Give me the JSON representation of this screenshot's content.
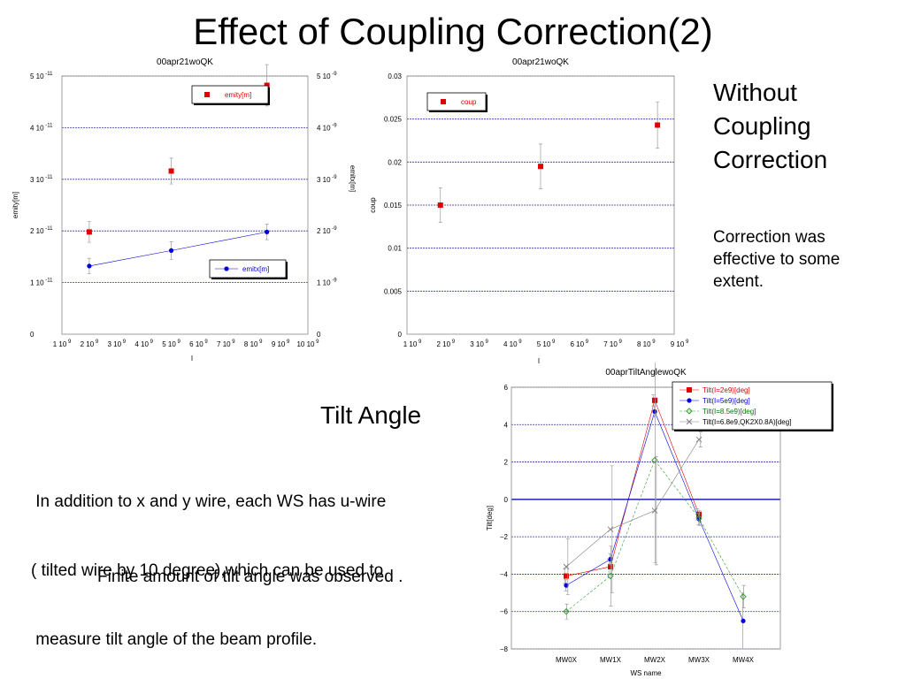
{
  "slide": {
    "title": "Effect of Coupling Correction(2)",
    "side_heading": [
      "Without",
      "Coupling",
      "Correction"
    ],
    "side_note": [
      "Correction was",
      "effective to some",
      "extent."
    ],
    "tilt_heading": "Tilt Angle",
    "paragraph": [
      " In addition to x and y wire, each WS has u-wire",
      "( tilted wire by 10 degree),which can be used to",
      " measure tilt angle of the beam profile."
    ],
    "finite_note": "Finite amount of tilt angle was observed ."
  },
  "chart_data": [
    {
      "type": "scatter",
      "title": "00apr21woQK",
      "xlabel": "I",
      "ylabel": "emity[m]",
      "ylabel_right": "emitx[m]",
      "x_ticks": [
        [
          "1 10",
          "9"
        ],
        [
          "2 10",
          "9"
        ],
        [
          "3 10",
          "9"
        ],
        [
          "4 10",
          "9"
        ],
        [
          "5 10",
          "9"
        ],
        [
          "6 10",
          "9"
        ],
        [
          "7 10",
          "9"
        ],
        [
          "8 10",
          "9"
        ],
        [
          "9 10",
          "9"
        ],
        [
          "10 10",
          "9"
        ]
      ],
      "y_left_ticks": [
        [
          "0",
          ""
        ],
        [
          "1 10",
          "-11"
        ],
        [
          "2 10",
          "-11"
        ],
        [
          "3 10",
          "-11"
        ],
        [
          "4 10",
          "-11"
        ],
        [
          "5 10",
          "-11"
        ]
      ],
      "y_right_ticks": [
        [
          "0",
          ""
        ],
        [
          "1 10",
          "-9"
        ],
        [
          "2 10",
          "-9"
        ],
        [
          "3 10",
          "-9"
        ],
        [
          "4 10",
          "-9"
        ],
        [
          "5 10",
          "-9"
        ]
      ],
      "xlim": [
        1000000000.0,
        10000000000.0
      ],
      "ylim_left": [
        0,
        5e-11
      ],
      "ylim_right": [
        0,
        5e-09
      ],
      "grid": "horizontal",
      "series": [
        {
          "name": "emity[m]",
          "axis": "left",
          "color": "#e00000",
          "marker": "square",
          "line": false,
          "points": [
            [
              2000000000.0,
              1.98e-11,
              2e-12
            ],
            [
              5000000000.0,
              3.16e-11,
              2.5e-12
            ],
            [
              8500000000.0,
              4.82e-11,
              4e-12
            ]
          ]
        },
        {
          "name": "emitx[m]",
          "axis": "right",
          "color": "#0000dd",
          "marker": "circle",
          "line": true,
          "points": [
            [
              2000000000.0,
              1.32e-09,
              1.5e-10
            ],
            [
              5000000000.0,
              1.62e-09,
              1.7e-10
            ],
            [
              8500000000.0,
              1.98e-09,
              1.5e-10
            ]
          ]
        }
      ]
    },
    {
      "type": "scatter",
      "title": "00apr21woQK",
      "xlabel": "I",
      "ylabel": "coup",
      "x_ticks": [
        [
          "1 10",
          "9"
        ],
        [
          "2 10",
          "9"
        ],
        [
          "3 10",
          "9"
        ],
        [
          "4 10",
          "9"
        ],
        [
          "5 10",
          "9"
        ],
        [
          "6 10",
          "9"
        ],
        [
          "7 10",
          "9"
        ],
        [
          "8 10",
          "9"
        ],
        [
          "9 10",
          "9"
        ]
      ],
      "y_ticks": [
        "0",
        "0.005",
        "0.01",
        "0.015",
        "0.02",
        "0.025",
        "0.03"
      ],
      "xlim": [
        1000000000.0,
        9000000000.0
      ],
      "ylim": [
        0,
        0.03
      ],
      "grid": "horizontal",
      "series": [
        {
          "name": "coup",
          "color": "#e00000",
          "marker": "square",
          "line": false,
          "points": [
            [
              2000000000.0,
              0.015,
              0.002
            ],
            [
              5000000000.0,
              0.0195,
              0.0026
            ],
            [
              8500000000.0,
              0.0243,
              0.0027
            ]
          ]
        }
      ]
    },
    {
      "type": "line",
      "title": "00aprTiltAnglewoQK",
      "xlabel": "WS name",
      "ylabel": "Tilt[deg]",
      "categories": [
        "MW0X",
        "MW1X",
        "MW2X",
        "MW3X",
        "MW4X"
      ],
      "ylim": [
        -8,
        6
      ],
      "y_ticks": [
        "6",
        "4",
        "2",
        "0",
        "−2",
        "−4",
        "−6",
        "−8"
      ],
      "grid": "horizontal",
      "series": [
        {
          "name": "Tilt(I=2e9)[deg]",
          "color": "#e00000",
          "label_color": "#e00000",
          "marker": "square",
          "dash": "",
          "values": [
            -4.1,
            -3.6,
            5.3,
            -0.8,
            null
          ],
          "errors": [
            0.4,
            0.4,
            0.3,
            0.3,
            null
          ]
        },
        {
          "name": "Tilt(I=5e9)[deg]",
          "color": "#0000dd",
          "label_color": "#0000dd",
          "marker": "circle",
          "dash": "",
          "values": [
            -4.6,
            -3.2,
            4.7,
            -1.05,
            -6.5
          ],
          "errors": [
            0.3,
            0.3,
            0.3,
            0.3,
            1.5
          ]
        },
        {
          "name": "Tilt(I=8.5e9)[deg]",
          "color": "#339933",
          "label_color": "#007700",
          "marker": "diamond",
          "dash": "3,2",
          "values": [
            -6.0,
            -4.1,
            2.1,
            -1.0,
            -5.2
          ],
          "errors": [
            0.4,
            1.6,
            5.5,
            0.4,
            0.6
          ]
        },
        {
          "name": "Tilt(I=6.8e9,QK2X0.8A)[deg]",
          "color": "#808080",
          "label_color": "#000000",
          "marker": "cross",
          "dash": "",
          "values": [
            -3.6,
            -1.6,
            -0.6,
            3.2,
            null
          ],
          "errors": [
            1.5,
            3.4,
            2.9,
            0.4,
            null
          ]
        }
      ]
    }
  ]
}
